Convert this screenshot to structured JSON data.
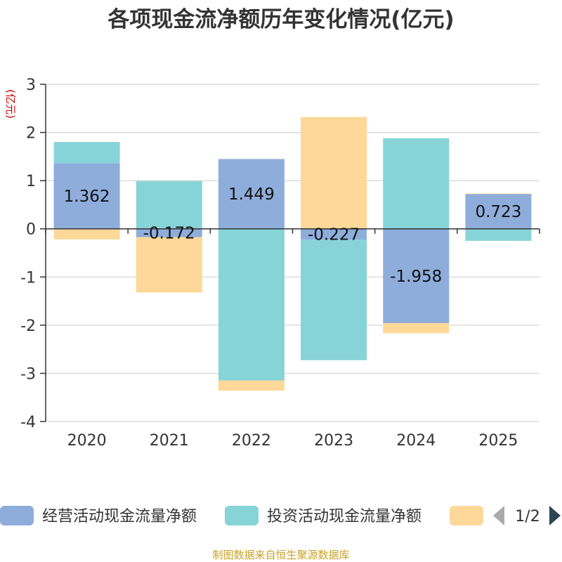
{
  "chart_data": {
    "type": "bar",
    "stacked": true,
    "title": "各项现金流净额历年变化情况(亿元)",
    "ylabel": "(亿元)",
    "categories": [
      "2020",
      "2021",
      "2022",
      "2023",
      "2024",
      "2025"
    ],
    "ylim": [
      -4,
      3
    ],
    "yticks": [
      "3",
      "2",
      "1",
      "0",
      "-1",
      "-2",
      "-3",
      "-4"
    ],
    "grid": true,
    "series": [
      {
        "name": "经营活动现金流量净额",
        "color": "#8eaddb",
        "values": [
          1.362,
          -0.172,
          1.449,
          -0.227,
          -1.958,
          0.723
        ]
      },
      {
        "name": "投资活动现金流量净额",
        "color": "#86d4d8",
        "values": [
          0.44,
          0.99,
          -3.15,
          -2.5,
          1.88,
          -0.25
        ]
      },
      {
        "name": "",
        "color": "#fdd898",
        "values": [
          -0.22,
          -1.15,
          -0.21,
          2.32,
          -0.21,
          0.01
        ]
      }
    ],
    "data_labels": [
      "1.362",
      "-0.172",
      "1.449",
      "-0.227",
      "-1.958",
      "0.723"
    ],
    "legend": {
      "placement": "bottom",
      "page": "1/2"
    }
  },
  "footer": "制图数据来自恒生聚源数据库"
}
